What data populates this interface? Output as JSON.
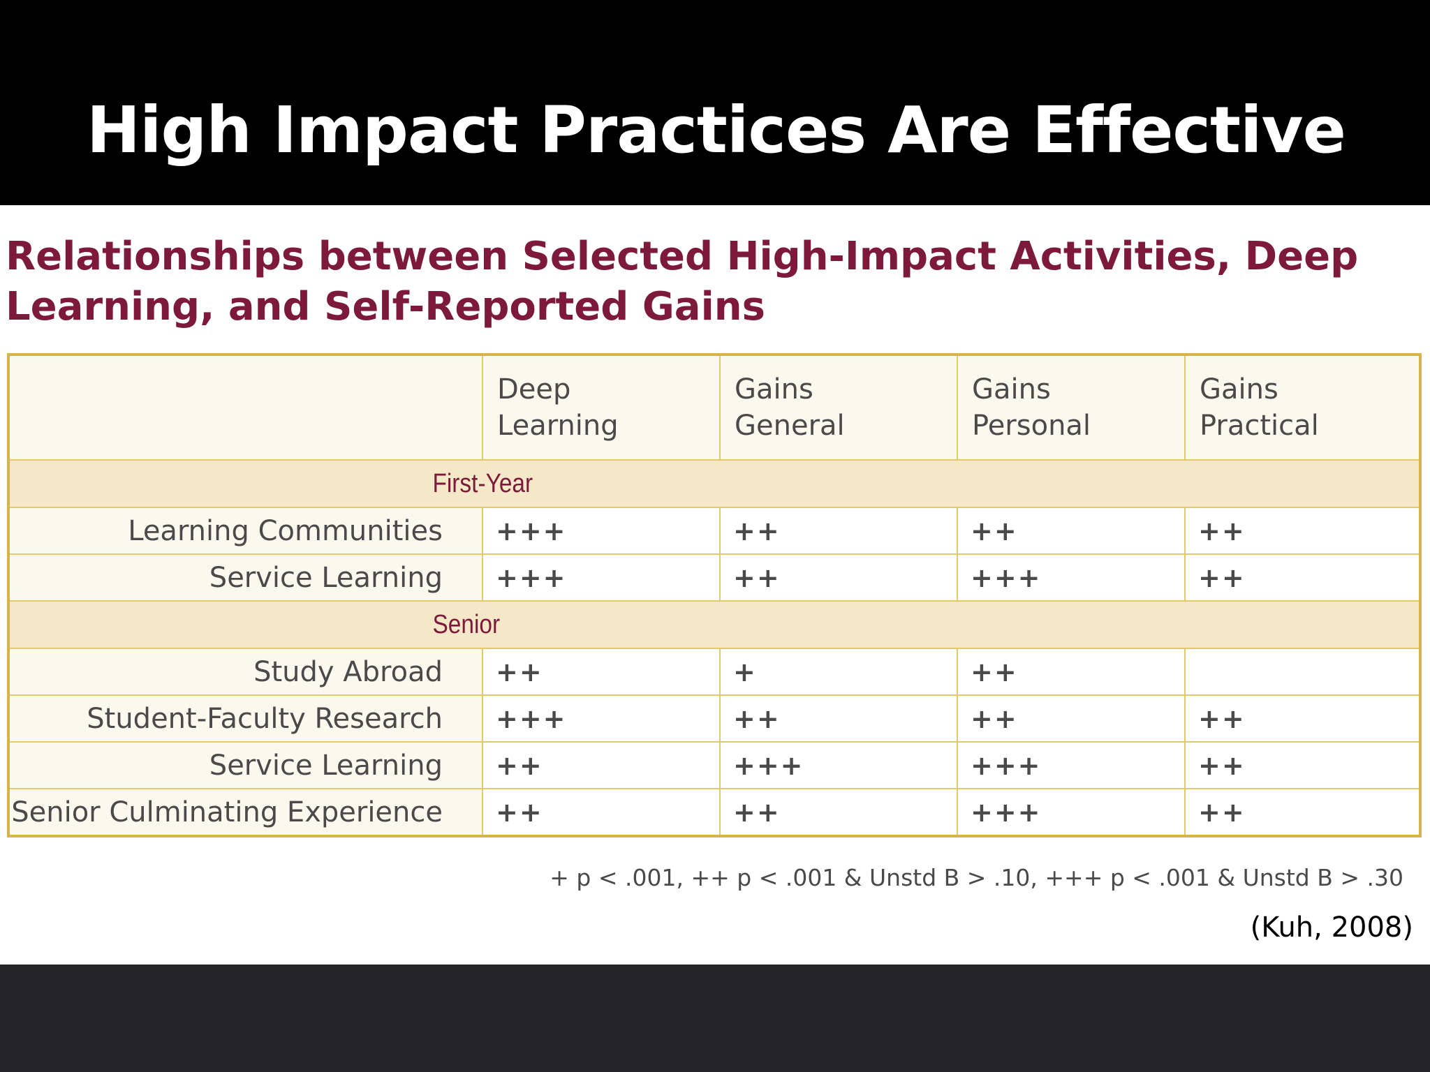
{
  "slide": {
    "title": "High Impact Practices Are Effective"
  },
  "figure": {
    "title": "Relationships between Selected High-Impact Activities, Deep Learning, and Self-Reported Gains",
    "columns": [
      "Deep Learning",
      "Gains General",
      "Gains Personal",
      "Gains Practical"
    ],
    "sections": [
      {
        "label": "First-Year",
        "rows": [
          {
            "label": "Learning Communities",
            "values": [
              "+++",
              "++",
              "++",
              "++"
            ]
          },
          {
            "label": "Service Learning",
            "values": [
              "+++",
              "++",
              "+++",
              "++"
            ]
          }
        ]
      },
      {
        "label": "Senior",
        "rows": [
          {
            "label": "Study Abroad",
            "values": [
              "++",
              "+",
              "++",
              ""
            ]
          },
          {
            "label": "Student-Faculty Research",
            "values": [
              "+++",
              "++",
              "++",
              "++"
            ]
          },
          {
            "label": "Service Learning",
            "values": [
              "++",
              "+++",
              "+++",
              "++"
            ]
          },
          {
            "label": "Senior Culminating Experience",
            "values": [
              "++",
              "++",
              "+++",
              "++"
            ]
          }
        ]
      }
    ],
    "footnote": "+ p < .001, ++ p < .001 & Unstd B > .10, +++ p < .001 & Unstd B > .30"
  },
  "citation": "(Kuh, 2008)"
}
